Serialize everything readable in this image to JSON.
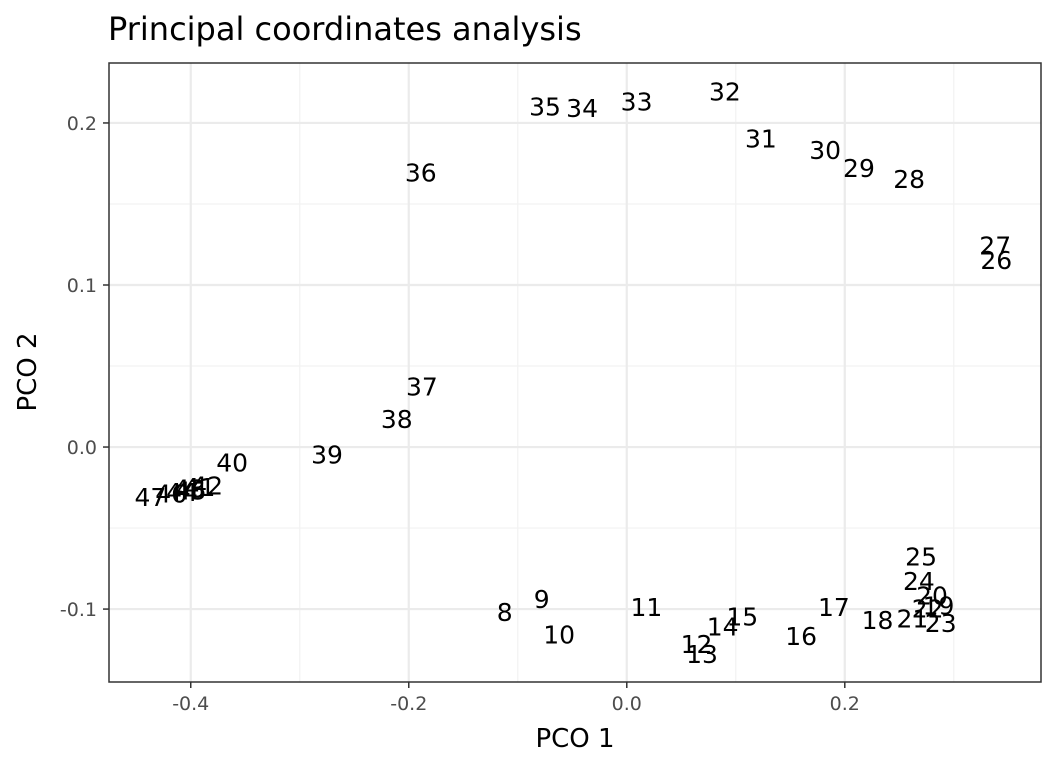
{
  "chart_data": {
    "type": "scatter",
    "title": "Principal coordinates analysis",
    "xlabel": "PCO 1",
    "ylabel": "PCO 2",
    "xlim": [
      -0.475,
      0.38
    ],
    "ylim": [
      -0.145,
      0.237
    ],
    "x_ticks": [
      -0.4,
      -0.2,
      0.0,
      0.2
    ],
    "x_tick_labels": [
      "-0.4",
      "-0.2",
      "0.0",
      "0.2"
    ],
    "y_ticks": [
      -0.1,
      0.0,
      0.1,
      0.2
    ],
    "y_tick_labels": [
      "-0.1",
      "0.0",
      "0.1",
      "0.2"
    ],
    "grid": true,
    "marker": "text-label",
    "points": [
      {
        "label": "8",
        "x": -0.112,
        "y": -0.102
      },
      {
        "label": "9",
        "x": -0.078,
        "y": -0.094
      },
      {
        "label": "10",
        "x": -0.062,
        "y": -0.116
      },
      {
        "label": "11",
        "x": 0.018,
        "y": -0.099
      },
      {
        "label": "12",
        "x": 0.064,
        "y": -0.122
      },
      {
        "label": "13",
        "x": 0.069,
        "y": -0.128
      },
      {
        "label": "14",
        "x": 0.088,
        "y": -0.111
      },
      {
        "label": "15",
        "x": 0.106,
        "y": -0.105
      },
      {
        "label": "16",
        "x": 0.16,
        "y": -0.117
      },
      {
        "label": "17",
        "x": 0.19,
        "y": -0.099
      },
      {
        "label": "18",
        "x": 0.23,
        "y": -0.107
      },
      {
        "label": "21",
        "x": 0.262,
        "y": -0.106
      },
      {
        "label": "19",
        "x": 0.286,
        "y": -0.098
      },
      {
        "label": "20",
        "x": 0.28,
        "y": -0.092
      },
      {
        "label": "22",
        "x": 0.276,
        "y": -0.1
      },
      {
        "label": "23",
        "x": 0.288,
        "y": -0.109
      },
      {
        "label": "24",
        "x": 0.268,
        "y": -0.083
      },
      {
        "label": "25",
        "x": 0.27,
        "y": -0.068
      },
      {
        "label": "26",
        "x": 0.339,
        "y": 0.115
      },
      {
        "label": "27",
        "x": 0.338,
        "y": 0.124
      },
      {
        "label": "28",
        "x": 0.259,
        "y": 0.165
      },
      {
        "label": "29",
        "x": 0.213,
        "y": 0.172
      },
      {
        "label": "30",
        "x": 0.182,
        "y": 0.183
      },
      {
        "label": "31",
        "x": 0.123,
        "y": 0.19
      },
      {
        "label": "32",
        "x": 0.09,
        "y": 0.219
      },
      {
        "label": "33",
        "x": 0.009,
        "y": 0.213
      },
      {
        "label": "34",
        "x": -0.041,
        "y": 0.209
      },
      {
        "label": "35",
        "x": -0.075,
        "y": 0.21
      },
      {
        "label": "36",
        "x": -0.189,
        "y": 0.169
      },
      {
        "label": "37",
        "x": -0.188,
        "y": 0.037
      },
      {
        "label": "38",
        "x": -0.211,
        "y": 0.017
      },
      {
        "label": "39",
        "x": -0.275,
        "y": -0.005
      },
      {
        "label": "40",
        "x": -0.362,
        "y": -0.01
      },
      {
        "label": "41",
        "x": -0.392,
        "y": -0.025
      },
      {
        "label": "42",
        "x": -0.385,
        "y": -0.024
      },
      {
        "label": "43",
        "x": -0.401,
        "y": -0.026
      },
      {
        "label": "44",
        "x": -0.408,
        "y": -0.028
      },
      {
        "label": "45",
        "x": -0.4,
        "y": -0.027
      },
      {
        "label": "46",
        "x": -0.418,
        "y": -0.029
      },
      {
        "label": "47",
        "x": -0.437,
        "y": -0.031
      }
    ]
  }
}
